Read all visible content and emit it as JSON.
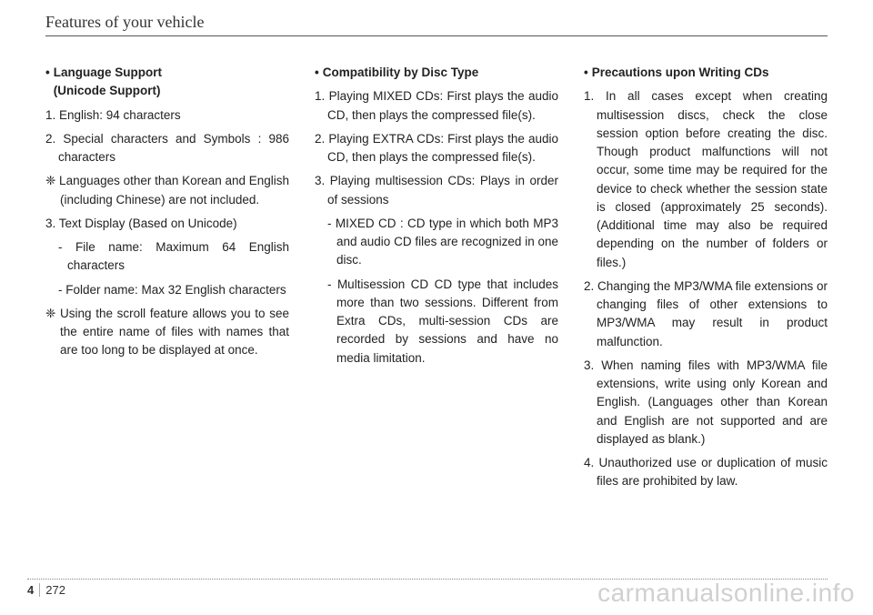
{
  "header": {
    "title": "Features of your vehicle"
  },
  "column1": {
    "title_bullet": "•",
    "title_line1": "Language Support",
    "title_line2": "(Unicode Support)",
    "items": [
      "1. English: 94 characters",
      "2. Special characters and Symbols : 986 characters"
    ],
    "diamond1": "❈ Languages other than Korean and English (including Chinese) are not included.",
    "item3": "3. Text Display (Based on Unicode)",
    "sub1": "- File name: Maximum 64 English characters",
    "sub2": "- Folder name: Max 32 English characters",
    "diamond2": "❈ Using the scroll feature allows you to see the entire name of files with names that are too long to be displayed at once."
  },
  "column2": {
    "title_bullet": "•",
    "title": "Compatibility by Disc Type",
    "items": [
      "1. Playing MIXED CDs: First plays the audio CD, then plays the compressed file(s).",
      "2. Playing EXTRA CDs: First plays the audio CD, then plays the compressed file(s).",
      "3. Playing multisession CDs: Plays in order of sessions"
    ],
    "sub1": "- MIXED CD : CD type in which both MP3 and audio CD files are recognized in one disc.",
    "sub2": "- Multisession CD CD type that includes more than two sessions. Different from Extra CDs, multi-session CDs are recorded by sessions and have no media limitation."
  },
  "column3": {
    "title_bullet": "•",
    "title": "Precautions upon Writing CDs",
    "items": [
      "1. In all cases except when creating multisession discs, check the close session option before creating the disc. Though product malfunctions will not occur, some time may be required for the device to check whether the session state is closed (approximately 25 seconds). (Additional time may also be required depending on the number of folders or files.)",
      "2. Changing the MP3/WMA file extensions or changing files of other extensions to MP3/WMA may result in product malfunction.",
      "3. When naming files with MP3/WMA file extensions, write using only Korean and English. (Languages other than Korean and English are not supported and are displayed as blank.)",
      "4. Unauthorized use or duplication of music files are prohibited by law."
    ]
  },
  "footer": {
    "chapter": "4",
    "page": "272"
  },
  "watermark": "carmanualsonline.info"
}
